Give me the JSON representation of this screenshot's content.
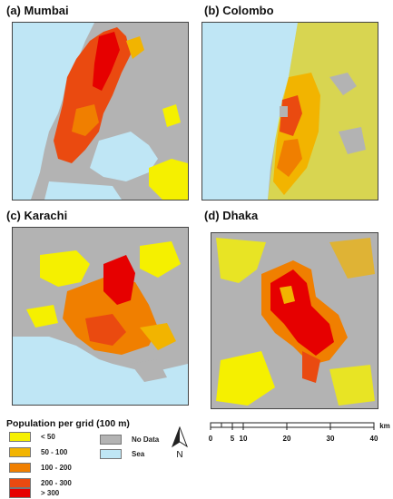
{
  "panels": [
    {
      "id": "a",
      "title": "(a) Mumbai"
    },
    {
      "id": "b",
      "title": "(b) Colombo"
    },
    {
      "id": "c",
      "title": "(c) Karachi"
    },
    {
      "id": "d",
      "title": "(d) Dhaka"
    }
  ],
  "legend": {
    "title": "Population per grid (100 m)",
    "items": [
      {
        "label": "< 50",
        "color": "#f5f000"
      },
      {
        "label": "50 - 100",
        "color": "#f2b400"
      },
      {
        "label": "100 - 200",
        "color": "#f07f00"
      },
      {
        "label": "200 - 300",
        "color": "#ea4a10"
      },
      {
        "label": "> 300",
        "color": "#e60000"
      }
    ],
    "extra": [
      {
        "label": "No Data",
        "color": "#b3b3b3"
      },
      {
        "label": "Sea",
        "color": "#bfe6f5"
      }
    ]
  },
  "north_arrow": {
    "label": "N"
  },
  "scale": {
    "ticks": [
      "0",
      "5",
      "10",
      "20",
      "30",
      "40"
    ],
    "unit": "km"
  },
  "colors": {
    "no_data": "#b3b3b3",
    "sea": "#bfe6f5",
    "lt50": "#f5f000",
    "c50_100": "#f2b400",
    "c100_200": "#f07f00",
    "c200_300": "#ea4a10",
    "gt300": "#e60000"
  }
}
